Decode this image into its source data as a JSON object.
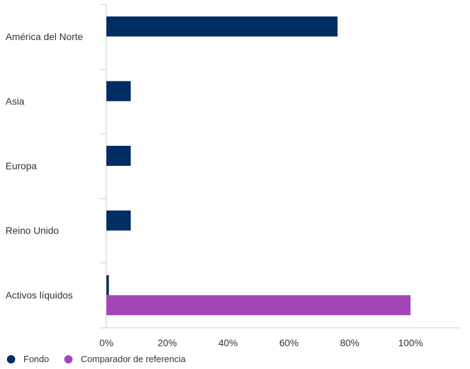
{
  "chart_data": {
    "type": "bar",
    "orientation": "horizontal",
    "categories": [
      "América del Norte",
      "Asia",
      "Europa",
      "Reino Unido",
      "Activos líquidos"
    ],
    "series": [
      {
        "name": "Fondo",
        "color": "#002d62",
        "values": [
          76,
          8,
          8,
          8,
          0.8
        ]
      },
      {
        "name": "Comparador de referencia",
        "color": "#a347b8",
        "values": [
          0,
          0,
          0,
          0,
          100
        ]
      }
    ],
    "xlim": [
      0,
      120
    ],
    "xticks": [
      0,
      20,
      40,
      60,
      80,
      100
    ],
    "xtick_labels": [
      "0%",
      "20%",
      "40%",
      "60%",
      "80%",
      "100%"
    ],
    "grid": false,
    "legend_position": "bottom-left"
  }
}
